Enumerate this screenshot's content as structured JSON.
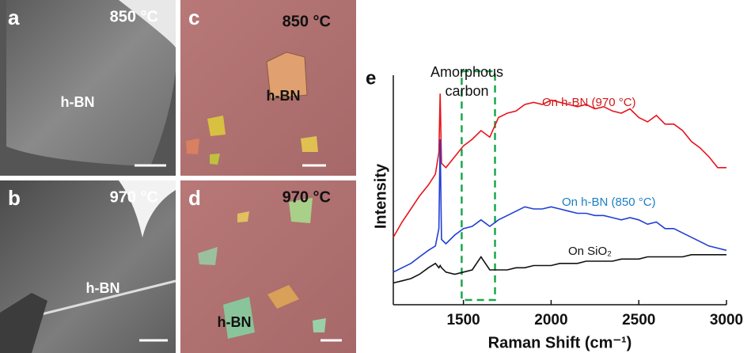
{
  "panels": [
    {
      "label": "a",
      "temperature": "850 °C",
      "material": "h-BN"
    },
    {
      "label": "b",
      "temperature": "970 °C",
      "material": "h-BN"
    },
    {
      "label": "c",
      "temperature": "850 °C",
      "material": "h-BN"
    },
    {
      "label": "d",
      "temperature": "970 °C",
      "material": "h-BN"
    }
  ],
  "chart_data": {
    "type": "line",
    "panel_label": "e",
    "x_label": "Raman Shift (cm⁻¹)",
    "y_label": "Intensity",
    "annotation_lines": [
      "Amorphous",
      "carbon"
    ],
    "highlight_x": [
      1490,
      1680
    ],
    "highlight_color": "#1aa84a",
    "xlim": [
      1100,
      3000
    ],
    "ylim": [
      0,
      100
    ],
    "xticks": [
      1500,
      2000,
      2500,
      3000
    ],
    "x": [
      1100,
      1150,
      1200,
      1250,
      1300,
      1340,
      1360,
      1367,
      1375,
      1400,
      1450,
      1500,
      1550,
      1600,
      1650,
      1700,
      1750,
      1800,
      1850,
      1900,
      1950,
      2000,
      2050,
      2100,
      2150,
      2200,
      2250,
      2300,
      2350,
      2400,
      2450,
      2500,
      2550,
      2600,
      2650,
      2700,
      2750,
      2800,
      2850,
      2900,
      2950,
      3000
    ],
    "series": [
      {
        "name": "On h-BN (970 °C)",
        "color": "#e8141c",
        "values": [
          31,
          38,
          44,
          50,
          55,
          60,
          70,
          97,
          65,
          63,
          68,
          73,
          76,
          80,
          77,
          86,
          88,
          89,
          92,
          93,
          92,
          94,
          93,
          92,
          91,
          92,
          90,
          91,
          89,
          88,
          90,
          86,
          84,
          87,
          83,
          83,
          80,
          75,
          72,
          68,
          63,
          63
        ]
      },
      {
        "name": "On h-BN (850 °C)",
        "color": "#1f3fd6",
        "values": [
          15,
          17,
          19,
          22,
          25,
          27,
          35,
          76,
          30,
          28,
          32,
          35,
          36,
          39,
          36,
          39,
          41,
          43,
          45,
          44,
          44,
          45,
          44,
          43,
          42,
          42,
          41,
          41,
          40,
          39,
          40,
          39,
          37,
          38,
          35,
          35,
          33,
          31,
          29,
          27,
          26,
          25
        ]
      },
      {
        "name": "On SiO₂",
        "color": "#111111",
        "values": [
          10,
          11,
          12,
          14,
          17,
          19,
          17,
          18,
          17,
          15,
          14,
          15,
          16,
          22,
          16,
          16,
          16,
          17,
          17,
          18,
          18,
          18,
          19,
          19,
          19,
          20,
          20,
          20,
          20,
          21,
          21,
          21,
          22,
          22,
          22,
          22,
          22,
          23,
          23,
          23,
          23,
          23
        ]
      }
    ]
  }
}
